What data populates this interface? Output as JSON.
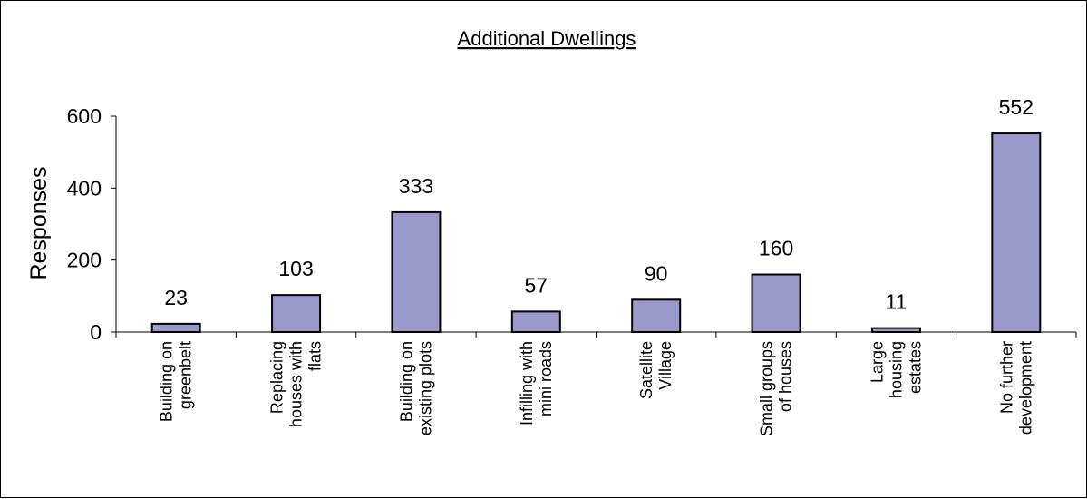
{
  "chart_data": {
    "type": "bar",
    "title": "Additional Dwellings",
    "ylabel": "Responses",
    "xlabel": "",
    "ylim": [
      0,
      600
    ],
    "yticks": [
      0,
      200,
      400,
      600
    ],
    "grid": false,
    "bar_color": "#9999cc",
    "categories": [
      [
        "Building on",
        "greenbelt"
      ],
      [
        "Replacing",
        "houses with",
        "flats"
      ],
      [
        "Building on",
        "existing plots"
      ],
      [
        "Infilling with",
        "mini roads"
      ],
      [
        "Satellite",
        "Village"
      ],
      [
        "Small groups",
        "of houses"
      ],
      [
        "Large",
        "housing",
        "estates"
      ],
      [
        "No further",
        "development"
      ]
    ],
    "values": [
      23,
      103,
      333,
      57,
      90,
      160,
      11,
      552
    ],
    "data_labels": [
      "23",
      "103",
      "333",
      "57",
      "90",
      "160",
      "11",
      "552"
    ]
  }
}
